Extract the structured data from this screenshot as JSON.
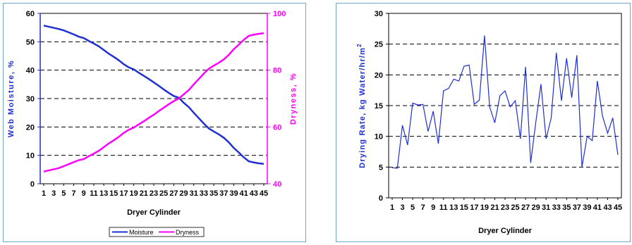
{
  "chart_data": [
    {
      "type": "line",
      "xlabel": "Dryer Cylinder",
      "ylabel": "Web Moisture, %",
      "y2label": "Dryness, %",
      "ylim": [
        0,
        60
      ],
      "y2lim": [
        40,
        100
      ],
      "yticks": [
        "0",
        "10",
        "20",
        "30",
        "40",
        "50",
        "60"
      ],
      "y2ticks": [
        "40",
        "60",
        "80",
        "100"
      ],
      "xticks": [
        "1",
        "3",
        "5",
        "7",
        "9",
        "11",
        "13",
        "15",
        "17",
        "19",
        "21",
        "23",
        "25",
        "27",
        "29",
        "31",
        "33",
        "35",
        "37",
        "39",
        "41",
        "43",
        "45"
      ],
      "grid": "horizontal dashed",
      "legend_position": "bottom",
      "colors": {
        "moisture": "#1f2fd0",
        "dryness": "#ff00ff",
        "axis_left": "#1f2fd0",
        "axis_right": "#ff00ff"
      },
      "x": [
        1,
        2,
        3,
        4,
        5,
        6,
        7,
        8,
        9,
        10,
        11,
        12,
        13,
        14,
        15,
        16,
        17,
        18,
        19,
        20,
        21,
        22,
        23,
        24,
        25,
        26,
        27,
        28,
        29,
        30,
        31,
        32,
        33,
        34,
        35,
        36,
        37,
        38,
        39,
        40,
        41,
        42,
        43,
        44,
        45
      ],
      "series": [
        {
          "name": "Moisture",
          "axis": "left",
          "values": [
            55.7,
            55.3,
            54.9,
            54.5,
            54.0,
            53.3,
            52.6,
            51.8,
            51.3,
            50.3,
            49.4,
            48.4,
            47.1,
            45.8,
            44.7,
            43.5,
            42.1,
            41.0,
            40.3,
            39.1,
            38.0,
            36.9,
            35.7,
            34.5,
            33.2,
            32.0,
            30.9,
            30.3,
            28.5,
            27.0,
            25.0,
            23.1,
            21.2,
            19.5,
            18.4,
            17.4,
            16.2,
            14.6,
            12.6,
            11.0,
            9.3,
            7.9,
            7.5,
            7.2,
            7.0
          ]
        },
        {
          "name": "Dryness",
          "axis": "right",
          "values": [
            44.3,
            44.7,
            45.1,
            45.5,
            46.2,
            46.9,
            47.6,
            48.3,
            48.7,
            49.7,
            50.6,
            51.6,
            52.9,
            54.2,
            55.3,
            56.5,
            57.9,
            59.0,
            59.8,
            60.9,
            62.0,
            63.2,
            64.3,
            65.6,
            66.8,
            68.0,
            69.1,
            70.0,
            71.5,
            73.0,
            75.0,
            76.9,
            78.8,
            80.5,
            81.6,
            82.6,
            83.8,
            85.4,
            87.4,
            89.0,
            90.7,
            92.1,
            92.5,
            92.8,
            93.0
          ]
        }
      ]
    },
    {
      "type": "line",
      "xlabel": "Dryer Cylinder",
      "ylabel": "Drying Rate, kg Water/hr/m",
      "ylabel_sup": "2",
      "ylim": [
        0,
        30
      ],
      "yticks": [
        "0",
        "5",
        "10",
        "15",
        "20",
        "25",
        "30"
      ],
      "xticks": [
        "1",
        "3",
        "5",
        "7",
        "9",
        "11",
        "13",
        "15",
        "17",
        "19",
        "21",
        "23",
        "25",
        "27",
        "29",
        "31",
        "33",
        "35",
        "37",
        "39",
        "41",
        "43",
        "45"
      ],
      "grid": "horizontal dashed",
      "colors": {
        "line": "#1f2fd0"
      },
      "x": [
        1,
        2,
        3,
        4,
        5,
        6,
        7,
        8,
        9,
        10,
        11,
        12,
        13,
        14,
        15,
        16,
        17,
        18,
        19,
        20,
        21,
        22,
        23,
        24,
        25,
        26,
        27,
        28,
        29,
        30,
        31,
        32,
        33,
        34,
        35,
        36,
        37,
        38,
        39,
        40,
        41,
        42,
        43,
        44,
        45
      ],
      "series": [
        {
          "values": [
            4.9,
            4.8,
            11.8,
            8.6,
            15.4,
            15.1,
            15.2,
            10.8,
            14.1,
            8.8,
            17.4,
            17.8,
            19.3,
            19.0,
            21.4,
            21.6,
            15.2,
            15.9,
            26.4,
            14.8,
            12.2,
            16.6,
            17.4,
            14.8,
            15.8,
            9.6,
            21.3,
            5.7,
            12.3,
            18.5,
            9.6,
            13.0,
            23.6,
            15.8,
            22.7,
            16.3,
            23.2,
            5.0,
            10.0,
            9.3,
            19.0,
            13.3,
            10.5,
            13.0,
            7.0
          ]
        }
      ]
    }
  ]
}
